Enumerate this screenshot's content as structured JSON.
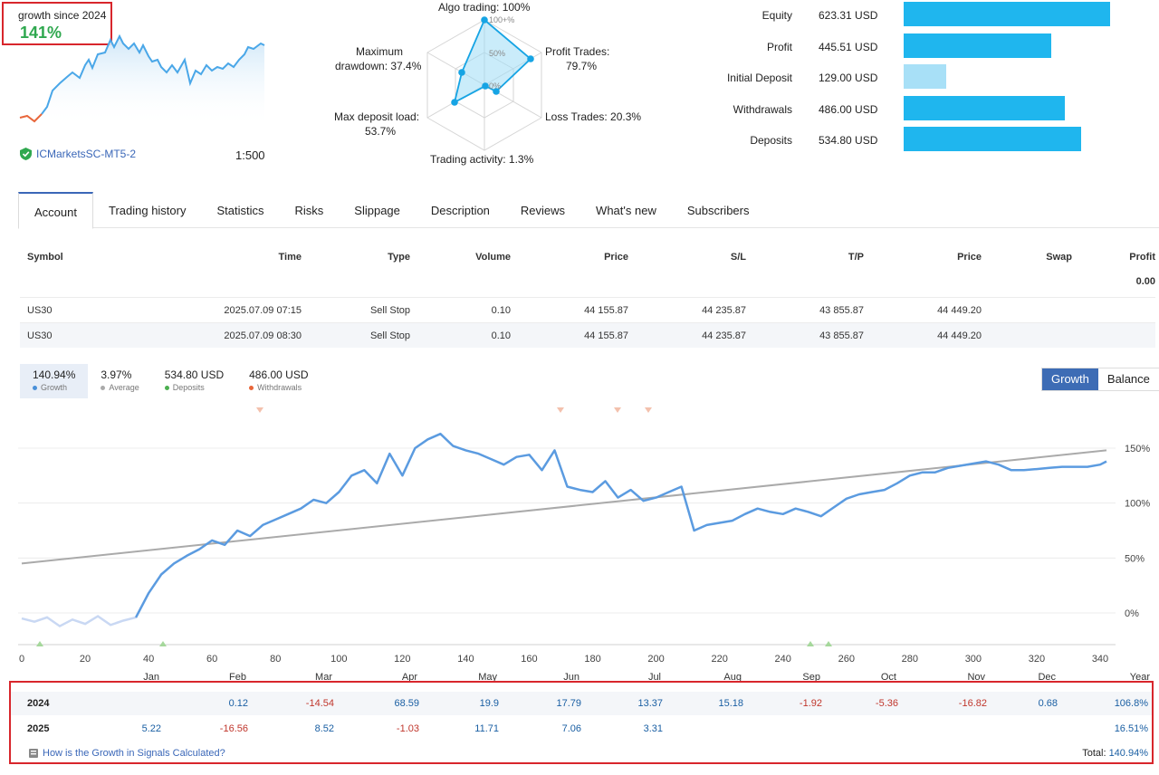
{
  "summary": {
    "growth_since": "growth since 2024",
    "growth_value": "141%",
    "broker": "ICMarketsSC-MT5-2",
    "leverage": "1:500"
  },
  "radar": {
    "algo": "Algo trading: 100%",
    "profit_trades_1": "Profit Trades:",
    "profit_trades_2": "79.7%",
    "loss_trades": "Loss Trades: 20.3%",
    "activity": "Trading activity: 1.3%",
    "deposit_load_1": "Max deposit load:",
    "deposit_load_2": "53.7%",
    "drawdown_1": "Maximum",
    "drawdown_2": "drawdown: 37.4%",
    "ring_100": "100+%",
    "ring_50": "50%",
    "ring_0": "0%",
    "values": [
      100,
      79.7,
      20.3,
      1.3,
      53.7,
      37.4
    ]
  },
  "balances": [
    {
      "label": "Equity",
      "value": "623.31 USD",
      "fraction": 0.878,
      "color": "#1fb6ee"
    },
    {
      "label": "Profit",
      "value": "445.51 USD",
      "fraction": 0.628,
      "color": "#1fb6ee"
    },
    {
      "label": "Initial Deposit",
      "value": "129.00 USD",
      "fraction": 0.182,
      "color": "#a8e0f7"
    },
    {
      "label": "Withdrawals",
      "value": "486.00 USD",
      "fraction": 0.685,
      "color": "#1fb6ee"
    },
    {
      "label": "Deposits",
      "value": "534.80 USD",
      "fraction": 0.754,
      "color": "#1fb6ee"
    }
  ],
  "tabs": [
    "Account",
    "Trading history",
    "Statistics",
    "Risks",
    "Slippage",
    "Description",
    "Reviews",
    "What's new",
    "Subscribers"
  ],
  "orders": {
    "headers": {
      "symbol": "Symbol",
      "time": "Time",
      "type": "Type",
      "volume": "Volume",
      "price": "Price",
      "sl": "S/L",
      "tp": "T/P",
      "price2": "Price",
      "swap": "Swap",
      "profit": "Profit"
    },
    "profit_total": "0.00",
    "rows": [
      {
        "symbol": "US30",
        "time": "2025.07.09 07:15",
        "type": "Sell Stop",
        "volume": "0.10",
        "price": "44 155.87",
        "sl": "44 235.87",
        "tp": "43 855.87",
        "price2": "44 449.20"
      },
      {
        "symbol": "US30",
        "time": "2025.07.09 08:30",
        "type": "Sell Stop",
        "volume": "0.10",
        "price": "44 155.87",
        "sl": "44 235.87",
        "tp": "43 855.87",
        "price2": "44 449.20"
      }
    ]
  },
  "legend": {
    "growth": {
      "value": "140.94%",
      "label": "Growth",
      "color": "#4a90d9"
    },
    "average": {
      "value": "3.97%",
      "label": "Average",
      "color": "#aaaaaa"
    },
    "deposits": {
      "value": "534.80 USD",
      "label": "Deposits",
      "color": "#4caf50"
    },
    "withdrawals": {
      "value": "486.00 USD",
      "label": "Withdrawals",
      "color": "#e8663a"
    }
  },
  "toggle": {
    "growth": "Growth",
    "balance": "Balance"
  },
  "chart_data": {
    "type": "line",
    "x_ticks": [
      "0",
      "20",
      "40",
      "60",
      "80",
      "100",
      "120",
      "140",
      "160",
      "180",
      "200",
      "220",
      "240",
      "260",
      "280",
      "300",
      "320",
      "340"
    ],
    "y_ticks": [
      "0%",
      "50%",
      "100%",
      "150%"
    ],
    "xlim": [
      0,
      345
    ],
    "ylim": [
      -30,
      170
    ],
    "series": [
      {
        "color": "#5b9be0",
        "x": [
          0,
          4,
          8,
          12,
          16,
          20,
          24,
          28,
          32,
          36,
          40,
          44,
          48,
          52,
          56,
          60,
          64,
          68,
          72,
          76,
          80,
          84,
          88,
          92,
          96,
          100,
          104,
          108,
          112,
          116,
          120,
          124,
          128,
          132,
          136,
          140,
          144,
          148,
          152,
          156,
          160,
          164,
          168,
          172,
          176,
          180,
          184,
          188,
          192,
          196,
          200,
          204,
          208,
          212,
          216,
          220,
          224,
          228,
          232,
          236,
          240,
          244,
          248,
          252,
          256,
          260,
          264,
          268,
          272,
          276,
          280,
          284,
          288,
          292,
          296,
          300,
          304,
          308,
          312,
          316,
          320,
          324,
          328,
          332,
          336,
          340,
          342
        ],
        "y": [
          -5,
          -8,
          -4,
          -12,
          -6,
          -10,
          -3,
          -11,
          -7,
          -4,
          18,
          35,
          45,
          52,
          58,
          66,
          62,
          75,
          70,
          80,
          85,
          90,
          95,
          103,
          100,
          110,
          125,
          130,
          118,
          145,
          125,
          150,
          158,
          163,
          152,
          148,
          145,
          140,
          135,
          142,
          144,
          130,
          148,
          115,
          112,
          110,
          120,
          105,
          112,
          102,
          105,
          110,
          115,
          75,
          80,
          82,
          84,
          90,
          95,
          92,
          90,
          95,
          92,
          88,
          96,
          104,
          108,
          110,
          112,
          118,
          125,
          128,
          128,
          132,
          134,
          136,
          138,
          135,
          130,
          130,
          131,
          132,
          133,
          133,
          133,
          135,
          138
        ]
      },
      {
        "color": "#aaaaaa",
        "x": [
          0,
          342
        ],
        "y": [
          45,
          148
        ]
      }
    ],
    "month_labels": [
      "Jan",
      "Feb",
      "Mar",
      "Apr",
      "May",
      "Jun",
      "Jul",
      "Aug",
      "Sep",
      "Oct",
      "Nov",
      "Dec",
      "Year"
    ]
  },
  "monthly": {
    "rows": [
      {
        "year": "2024",
        "values": [
          "",
          "0.12",
          "-14.54",
          "68.59",
          "19.9",
          "17.79",
          "13.37",
          "15.18",
          "-1.92",
          "-5.36",
          "-16.82",
          "0.68"
        ],
        "total": "106.8%"
      },
      {
        "year": "2025",
        "values": [
          "5.22",
          "-16.56",
          "8.52",
          "-1.03",
          "11.71",
          "7.06",
          "3.31",
          "",
          "",
          "",
          "",
          ""
        ],
        "total": "16.51%"
      }
    ],
    "link": "How is the Growth in Signals Calculated?",
    "total_label": "Total:",
    "total_value": "140.94%"
  }
}
